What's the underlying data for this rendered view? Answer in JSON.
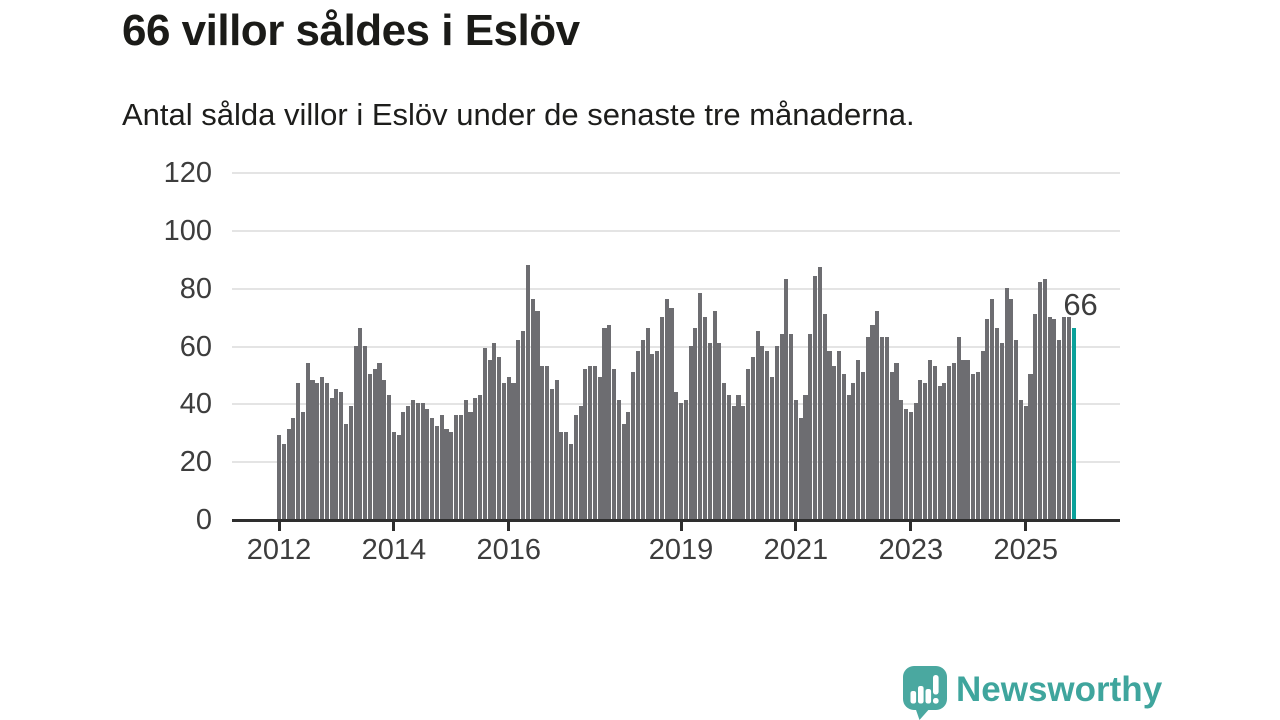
{
  "header": {
    "title": "66 villor såldes i Eslöv",
    "subtitle": "Antal sålda villor i Eslöv under de senaste tre månaderna."
  },
  "chart_data": {
    "type": "bar",
    "title": "66 villor såldes i Eslöv",
    "subtitle": "Antal sålda villor i Eslöv under de senaste tre månaderna.",
    "unit": "antal sålda villor (rullande tre månader)",
    "frequency": "monthly",
    "start": "2012-01",
    "end": "2025-11",
    "ylim": [
      0,
      120
    ],
    "yticks": [
      0,
      20,
      40,
      60,
      80,
      100,
      120
    ],
    "grid": "horizontal",
    "xticks": [
      {
        "year": 2012,
        "label": "2012"
      },
      {
        "year": 2014,
        "label": "2014"
      },
      {
        "year": 2016,
        "label": "2016"
      },
      {
        "year": 2019,
        "label": "2019"
      },
      {
        "year": 2021,
        "label": "2021"
      },
      {
        "year": 2023,
        "label": "2023"
      },
      {
        "year": 2025,
        "label": "2025"
      }
    ],
    "values": [
      29,
      26,
      31,
      35,
      47,
      37,
      54,
      48,
      47,
      49,
      47,
      42,
      45,
      44,
      33,
      39,
      60,
      66,
      60,
      50,
      52,
      54,
      48,
      43,
      30,
      29,
      37,
      39,
      41,
      40,
      40,
      38,
      35,
      32,
      36,
      31,
      30,
      36,
      36,
      41,
      37,
      42,
      43,
      59,
      55,
      61,
      56,
      47,
      49,
      47,
      62,
      65,
      88,
      76,
      72,
      53,
      53,
      45,
      48,
      30,
      30,
      26,
      36,
      39,
      52,
      53,
      53,
      49,
      66,
      67,
      52,
      41,
      33,
      37,
      51,
      58,
      62,
      66,
      57,
      58,
      70,
      76,
      73,
      44,
      40,
      41,
      60,
      66,
      78,
      70,
      61,
      72,
      61,
      47,
      43,
      39,
      43,
      39,
      52,
      56,
      65,
      60,
      58,
      49,
      60,
      64,
      83,
      64,
      41,
      35,
      43,
      64,
      84,
      87,
      71,
      58,
      53,
      58,
      50,
      43,
      47,
      55,
      51,
      63,
      67,
      72,
      63,
      63,
      51,
      54,
      41,
      38,
      37,
      40,
      48,
      47,
      55,
      53,
      46,
      47,
      53,
      54,
      63,
      55,
      55,
      50,
      51,
      58,
      69,
      76,
      66,
      61,
      80,
      76,
      62,
      41,
      39,
      50,
      71,
      82,
      83,
      70,
      69,
      62,
      70,
      70,
      66
    ],
    "highlight_last_bar": true,
    "last_value_label": "66",
    "colors": {
      "bar": "#6d6d71",
      "highlight": "#0aa19a",
      "gridline": "#e4e4e4",
      "axis": "#2e2e2e",
      "axis_text": "#3d3d3d",
      "annotation_text": "#3d3d3d"
    }
  },
  "footer": {
    "brand": "Newsworthy",
    "brand_color": "#3fa59d",
    "icon_color": "#4aa8a0"
  }
}
